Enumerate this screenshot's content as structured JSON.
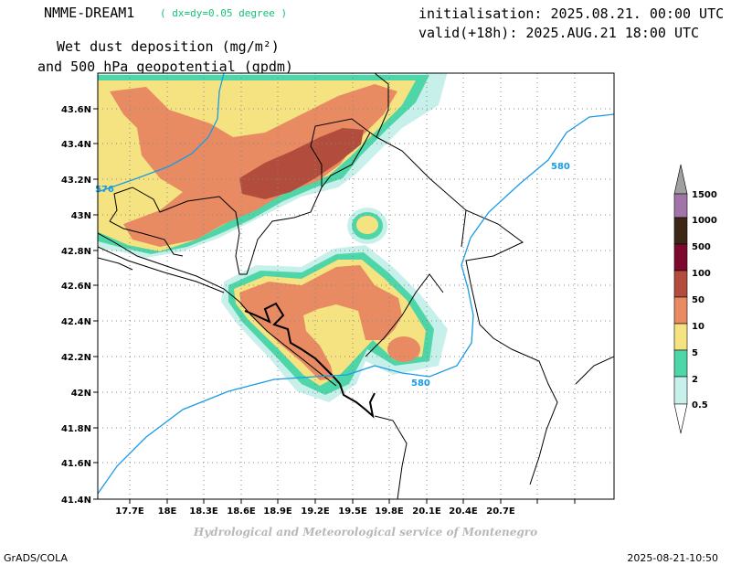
{
  "header": {
    "model": "NMME-DREAM1",
    "resolution": "( dx=dy=0.05 degree )",
    "initialisation": "initialisation: 2025.08.21. 00:00 UTC",
    "valid": "valid(+18h): 2025.AUG.21 18:00 UTC",
    "title_line1": "Wet dust deposition (mg/m²)",
    "title_line2": "and 500 hPa geopotential (gpdm)"
  },
  "footer": {
    "credit": "Hydrological and Meteorological service of Montenegro",
    "software": "GrADS/COLA",
    "timestamp": "2025-08-21-10:50"
  },
  "map": {
    "lon_ticks": [
      "17.7E",
      "18E",
      "18.3E",
      "18.6E",
      "18.9E",
      "19.2E",
      "19.5E",
      "19.8E",
      "20.1E",
      "20.4E",
      "20.7E"
    ],
    "lat_ticks": [
      "43.6N",
      "43.4N",
      "43.2N",
      "43N",
      "42.8N",
      "42.6N",
      "42.4N",
      "42.2N",
      "42N",
      "41.8N",
      "41.6N",
      "41.4N"
    ],
    "contour_labels": [
      "576",
      "580",
      "580"
    ],
    "contour_color": "#1a9be6",
    "grid": "dotted"
  },
  "legend": {
    "levels": [
      "1500",
      "1000",
      "500",
      "100",
      "50",
      "10",
      "5",
      "2",
      "0.5"
    ],
    "colors": [
      "#a0a0a0",
      "#a275a8",
      "#3d2818",
      "#7d0a2e",
      "#b24c3c",
      "#e88a62",
      "#f5e382",
      "#4fd6a8",
      "#c8f0ea"
    ]
  },
  "colors": {
    "c1": "#c8f0ea",
    "c2": "#4fd6a8",
    "c3": "#f5e382",
    "c4": "#e88a62",
    "c5": "#b24c3c"
  }
}
